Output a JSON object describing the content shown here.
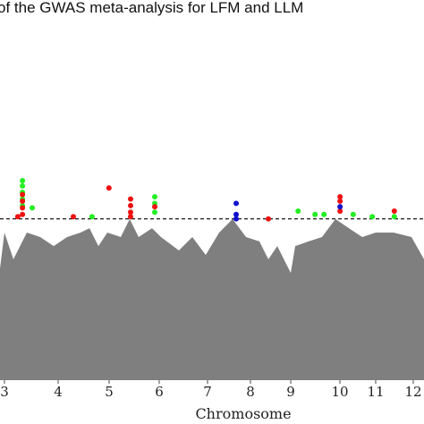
{
  "chart_data": {
    "type": "scatter",
    "title": "of the GWAS meta-analysis for LFM and LLM",
    "x_label": "Chromosome",
    "xlim": [
      0,
      100
    ],
    "ylim": [
      0,
      10
    ],
    "xticks": [
      {
        "value": 1.05,
        "label": "3"
      },
      {
        "value": 13.71,
        "label": "4"
      },
      {
        "value": 25.74,
        "label": "5"
      },
      {
        "value": 37.55,
        "label": "6"
      },
      {
        "value": 48.95,
        "label": "7"
      },
      {
        "value": 59.07,
        "label": "8"
      },
      {
        "value": 68.57,
        "label": "9"
      },
      {
        "value": 80.17,
        "label": "10"
      },
      {
        "value": 88.61,
        "label": "11"
      },
      {
        "value": 97.47,
        "label": "12"
      }
    ],
    "threshold": 7.3,
    "background": {
      "color": "#7f7f7f",
      "x": [
        0,
        1.05,
        3.16,
        6.33,
        9.49,
        12.66,
        15.82,
        18.99,
        21.1,
        23.21,
        25.32,
        28.48,
        30.59,
        32.7,
        35.86,
        37.97,
        42.19,
        45.36,
        48.52,
        51.69,
        54.85,
        58.02,
        61.18,
        63.29,
        65.4,
        67.51,
        68.57,
        69.62,
        72.78,
        75.95,
        79.11,
        82.28,
        85.44,
        88.61,
        92.83,
        97.05,
        100
      ],
      "values": [
        5.06,
        6.68,
        5.47,
        6.68,
        6.48,
        6.07,
        6.48,
        6.68,
        6.88,
        6.07,
        6.68,
        6.48,
        7.29,
        6.48,
        6.88,
        6.48,
        5.87,
        6.48,
        5.67,
        6.68,
        7.29,
        6.48,
        6.28,
        5.47,
        6.07,
        5.26,
        4.86,
        6.07,
        6.28,
        6.48,
        7.29,
        6.88,
        6.48,
        6.68,
        6.68,
        6.48,
        5.47
      ]
    },
    "series": [
      {
        "color": "#22ee22",
        "x": [
          5.3,
          5.3,
          5.3,
          5.3,
          5.3,
          7.6,
          21.7,
          36.5,
          36.5,
          36.5,
          70.3,
          74.3,
          76.4,
          83.3,
          87.8,
          93
        ],
        "values": [
          9.03,
          8.79,
          8.5,
          8.2,
          7.9,
          7.8,
          7.4,
          8.3,
          8.0,
          7.6,
          7.65,
          7.5,
          7.5,
          7.5,
          7.4,
          7.4
        ]
      },
      {
        "color": "#ee1111",
        "x": [
          5.3,
          5.3,
          5.3,
          5.3,
          4.2,
          17.3,
          25.7,
          30.8,
          30.8,
          30.8,
          30.8,
          36.5,
          63.3,
          80.2,
          80.2,
          80.2,
          93
        ],
        "values": [
          8.4,
          8.1,
          7.8,
          7.5,
          7.4,
          7.4,
          8.7,
          8.2,
          7.9,
          7.6,
          7.4,
          7.85,
          7.3,
          8.3,
          8.1,
          7.65,
          7.65
        ]
      },
      {
        "color": "#1111cc",
        "x": [
          55.7,
          55.7,
          55.7,
          80.2
        ],
        "values": [
          8.0,
          7.5,
          7.3,
          7.85
        ]
      }
    ]
  }
}
